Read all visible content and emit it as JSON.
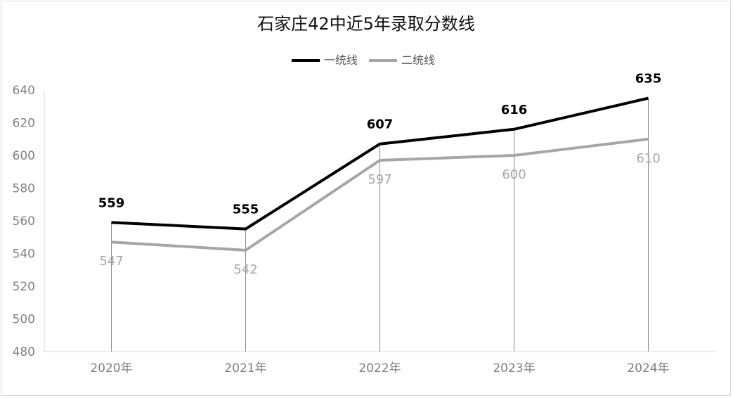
{
  "chart_data": {
    "type": "line",
    "title": "石家庄42中近5年录取分数线",
    "xlabel": "",
    "ylabel": "",
    "categories": [
      "2020年",
      "2021年",
      "2022年",
      "2023年",
      "2024年"
    ],
    "series": [
      {
        "name": "一统线",
        "values": [
          559,
          555,
          607,
          616,
          635
        ],
        "color": "#000000"
      },
      {
        "name": "二统线",
        "values": [
          547,
          542,
          597,
          600,
          610
        ],
        "color": "#a6a6a6"
      }
    ],
    "ylim": [
      480,
      640
    ],
    "yticks": [
      "480",
      "500",
      "520",
      "540",
      "560",
      "580",
      "600",
      "620",
      "640"
    ],
    "grid": false,
    "legend_position": "top-center",
    "drop_lines": true
  }
}
